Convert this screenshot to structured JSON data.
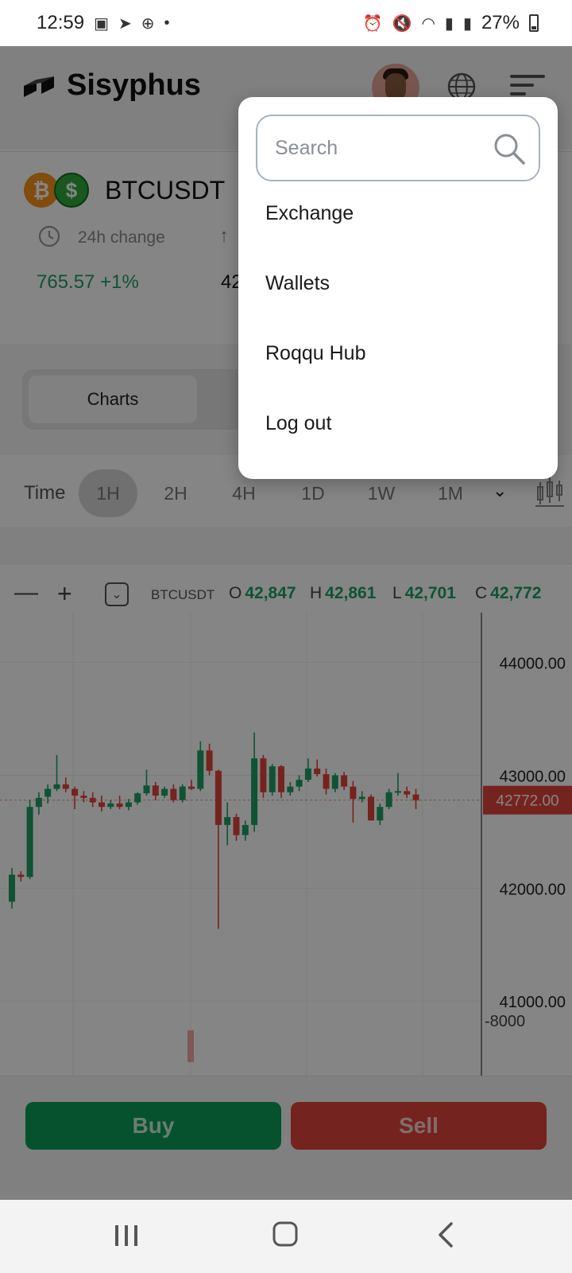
{
  "status_bar": {
    "time": "12:59",
    "battery": "27%"
  },
  "header": {
    "brand": "Sisyphus"
  },
  "pair": {
    "name": "BTCUSDT",
    "change_label": "24h change",
    "change_value": "765.57 +1%",
    "high_value_partial": "42"
  },
  "tabs": {
    "charts": "Charts"
  },
  "timeframes": {
    "label": "Time",
    "items": [
      "1H",
      "2H",
      "4H",
      "1D",
      "1W",
      "1M"
    ],
    "active": "1H"
  },
  "chart_toolbar": {
    "symbol": "BTCUSDT",
    "o_label": "O",
    "o_value": "42,847",
    "h_label": "H",
    "h_value": "42,861",
    "l_label": "L",
    "l_value": "42,701",
    "c_label": "C",
    "c_value": "42,772"
  },
  "chart_data": {
    "type": "candlestick",
    "y_ticks": [
      "44000.00",
      "43000.00",
      "42000.00",
      "41000.00"
    ],
    "current_price_label": "42772.00",
    "volume_tick": "-8000",
    "ylim": [
      40600,
      44300
    ],
    "candles": [
      [
        41880,
        42180,
        41820,
        42120
      ],
      [
        42120,
        42150,
        42060,
        42100
      ],
      [
        42100,
        42780,
        42080,
        42720
      ],
      [
        42720,
        42850,
        42650,
        42800
      ],
      [
        42810,
        42920,
        42750,
        42880
      ],
      [
        42880,
        43180,
        42860,
        42920
      ],
      [
        42920,
        42980,
        42850,
        42880
      ],
      [
        42880,
        42900,
        42700,
        42820
      ],
      [
        42820,
        42860,
        42760,
        42800
      ],
      [
        42800,
        42850,
        42720,
        42760
      ],
      [
        42760,
        42820,
        42680,
        42720
      ],
      [
        42720,
        42780,
        42700,
        42750
      ],
      [
        42750,
        42820,
        42700,
        42720
      ],
      [
        42720,
        42790,
        42690,
        42760
      ],
      [
        42760,
        42850,
        42740,
        42840
      ],
      [
        42840,
        43050,
        42820,
        42910
      ],
      [
        42910,
        42940,
        42780,
        42820
      ],
      [
        42820,
        42900,
        42800,
        42880
      ],
      [
        42880,
        42920,
        42760,
        42780
      ],
      [
        42780,
        42920,
        42760,
        42900
      ],
      [
        42900,
        42960,
        42870,
        42880
      ],
      [
        42880,
        43300,
        42860,
        43220
      ],
      [
        43220,
        43280,
        43000,
        43040
      ],
      [
        43040,
        43050,
        41640,
        42560
      ],
      [
        42560,
        42760,
        42380,
        42630
      ],
      [
        42630,
        42660,
        42420,
        42470
      ],
      [
        42470,
        42600,
        42420,
        42560
      ],
      [
        42560,
        43380,
        42500,
        43150
      ],
      [
        43150,
        43180,
        42800,
        42850
      ],
      [
        42850,
        43100,
        42820,
        43080
      ],
      [
        43080,
        43090,
        42800,
        42850
      ],
      [
        42850,
        42940,
        42820,
        42900
      ],
      [
        42900,
        43000,
        42860,
        42960
      ],
      [
        42960,
        43150,
        42940,
        43060
      ],
      [
        43060,
        43140,
        42990,
        43010
      ],
      [
        43010,
        43060,
        42830,
        42880
      ],
      [
        42880,
        43020,
        42850,
        43000
      ],
      [
        43000,
        43030,
        42870,
        42900
      ],
      [
        42900,
        42950,
        42580,
        42790
      ],
      [
        42790,
        42860,
        42760,
        42810
      ],
      [
        42810,
        42830,
        42600,
        42600
      ],
      [
        42600,
        42750,
        42560,
        42720
      ],
      [
        42720,
        42880,
        42700,
        42850
      ],
      [
        42850,
        43020,
        42820,
        42860
      ],
      [
        42860,
        42900,
        42800,
        42830
      ],
      [
        42830,
        42880,
        42700,
        42780
      ]
    ]
  },
  "actions": {
    "buy": "Buy",
    "sell": "Sell"
  },
  "dropdown": {
    "search_placeholder": "Search",
    "items": [
      "Exchange",
      "Wallets",
      "Roqqu Hub",
      "Log out"
    ]
  },
  "colors": {
    "up": "#1ea064",
    "down": "#e0443c",
    "buy": "#0d9e58",
    "sell": "#e0443c",
    "overlay": "rgba(0,0,0,0.48)"
  }
}
